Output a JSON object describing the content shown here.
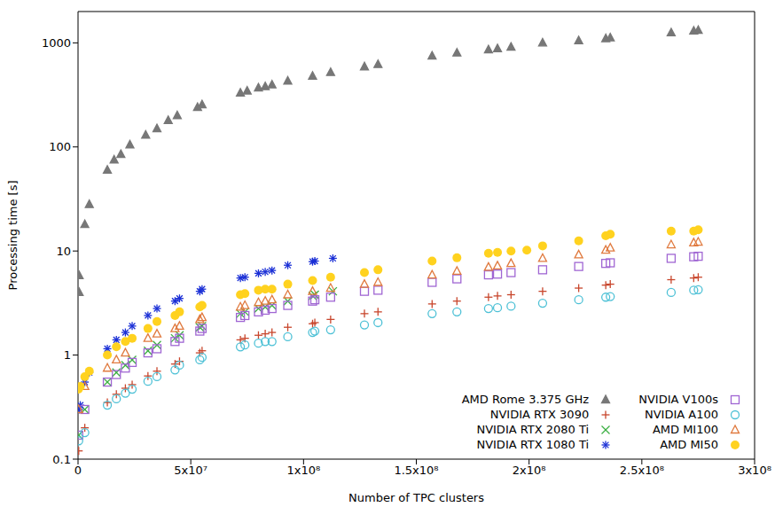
{
  "chart_data": {
    "type": "scatter",
    "x_label": "Number of TPC clusters",
    "y_label": "Processing time [s]",
    "log": "y",
    "grid": false,
    "legend": "lower right",
    "xlim": [
      0,
      300000000
    ],
    "xticks": [
      0,
      {
        "value": 50000000,
        "label": "5x10⁷"
      },
      {
        "value": 100000000,
        "label": "1x10⁸"
      },
      {
        "value": 150000000,
        "label": "1.5x10⁸"
      },
      {
        "value": 200000000,
        "label": "2x10⁸"
      },
      {
        "value": 250000000,
        "label": "2.5x10⁸"
      },
      {
        "value": 300000000,
        "label": "3x10⁸"
      }
    ],
    "ylim": [
      0.1,
      2000
    ],
    "yticks": [
      0.1,
      1,
      10,
      100,
      1000
    ],
    "series": [
      {
        "name": "AMD Rome 3.375 GHz",
        "color": "#777777",
        "marker": "filled_triangle",
        "x": [
          500000,
          500000,
          3000000,
          5000000,
          13000000,
          16000000,
          19000000,
          23000000,
          30000000,
          35000000,
          40000000,
          44000000,
          53000000,
          55000000,
          72000000,
          75000000,
          80000000,
          83000000,
          86000000,
          93000000,
          104000000,
          112000000,
          127000000,
          133000000,
          157000000,
          168000000,
          182000000,
          186000000,
          192000000,
          206000000,
          222000000,
          234000000,
          236000000,
          263000000,
          273000000,
          275000000
        ],
        "values": [
          4,
          5.8,
          18,
          28,
          60,
          75,
          85,
          105,
          130,
          150,
          180,
          200,
          240,
          255,
          330,
          345,
          370,
          380,
          395,
          430,
          480,
          520,
          590,
          620,
          750,
          800,
          860,
          880,
          910,
          1000,
          1050,
          1100,
          1120,
          1250,
          1300,
          1320
        ]
      },
      {
        "name": "NVIDIA RTX 3090",
        "color": "#c8462c",
        "marker": "plus",
        "x": [
          300000,
          3000000,
          13000000,
          17000000,
          21000000,
          24000000,
          31000000,
          35000000,
          43000000,
          45000000,
          54000000,
          55000000,
          72000000,
          74000000,
          80000000,
          83000000,
          86000000,
          93000000,
          104000000,
          105000000,
          112000000,
          127000000,
          133000000,
          157000000,
          168000000,
          182000000,
          186000000,
          192000000,
          206000000,
          222000000,
          234000000,
          236000000,
          263000000,
          273000000,
          275000000
        ],
        "values": [
          0.12,
          0.2,
          0.35,
          0.42,
          0.48,
          0.52,
          0.63,
          0.7,
          0.82,
          0.87,
          1.05,
          1.1,
          1.4,
          1.45,
          1.55,
          1.6,
          1.65,
          1.85,
          2.0,
          2.05,
          2.2,
          2.5,
          2.6,
          3.1,
          3.3,
          3.6,
          3.7,
          3.8,
          4.1,
          4.4,
          4.7,
          4.8,
          5.3,
          5.5,
          5.6
        ]
      },
      {
        "name": "NVIDIA RTX 2080 Ti",
        "color": "#3cb043",
        "marker": "x",
        "x": [
          300000,
          3000000,
          13000000,
          17000000,
          21000000,
          24000000,
          31000000,
          35000000,
          43000000,
          45000000,
          54000000,
          55000000,
          72000000,
          74000000,
          80000000,
          83000000,
          86000000,
          93000000,
          104000000,
          105000000,
          113000000
        ],
        "values": [
          0.17,
          0.3,
          0.55,
          0.68,
          0.8,
          0.9,
          1.1,
          1.25,
          1.45,
          1.55,
          1.85,
          1.9,
          2.5,
          2.6,
          2.8,
          2.9,
          3.0,
          3.3,
          3.7,
          3.8,
          4.1
        ]
      },
      {
        "name": "NVIDIA RTX 1080 Ti",
        "color": "#1a2fd6",
        "marker": "asterisk",
        "x": [
          500000,
          1000000,
          3000000,
          5000000,
          13000000,
          17000000,
          21000000,
          24000000,
          31000000,
          35000000,
          43000000,
          45000000,
          54000000,
          55000000,
          72000000,
          74000000,
          80000000,
          83000000,
          86000000,
          93000000,
          104000000,
          105000000,
          113000000
        ],
        "values": [
          0.3,
          0.33,
          0.55,
          0.68,
          1.15,
          1.4,
          1.65,
          1.9,
          2.4,
          2.8,
          3.3,
          3.5,
          4.1,
          4.3,
          5.5,
          5.6,
          6.1,
          6.3,
          6.5,
          7.3,
          7.9,
          8.0,
          8.5
        ]
      },
      {
        "name": "NVIDIA V100s",
        "color": "#a066d3",
        "marker": "open_square",
        "x": [
          300000,
          3000000,
          13000000,
          17000000,
          21000000,
          24000000,
          31000000,
          35000000,
          43000000,
          45000000,
          54000000,
          55000000,
          72000000,
          74000000,
          80000000,
          83000000,
          86000000,
          93000000,
          104000000,
          105000000,
          112000000,
          127000000,
          133000000,
          157000000,
          168000000,
          182000000,
          186000000,
          192000000,
          206000000,
          222000000,
          234000000,
          236000000,
          263000000,
          273000000,
          275000000
        ],
        "values": [
          0.17,
          0.3,
          0.55,
          0.65,
          0.75,
          0.85,
          1.05,
          1.15,
          1.35,
          1.45,
          1.7,
          1.8,
          2.3,
          2.4,
          2.6,
          2.7,
          2.8,
          3.0,
          3.3,
          3.4,
          3.6,
          4.1,
          4.2,
          5.0,
          5.4,
          5.9,
          6.0,
          6.2,
          6.6,
          7.1,
          7.6,
          7.7,
          8.5,
          8.8,
          8.9
        ]
      },
      {
        "name": "NVIDIA A100",
        "color": "#4ec1d6",
        "marker": "open_circle",
        "x": [
          300000,
          3000000,
          13000000,
          17000000,
          21000000,
          24000000,
          31000000,
          35000000,
          43000000,
          45000000,
          54000000,
          55000000,
          72000000,
          74000000,
          80000000,
          83000000,
          86000000,
          93000000,
          104000000,
          105000000,
          112000000,
          127000000,
          133000000,
          157000000,
          168000000,
          182000000,
          186000000,
          192000000,
          206000000,
          222000000,
          234000000,
          236000000,
          263000000,
          273000000,
          275000000
        ],
        "values": [
          0.15,
          0.18,
          0.33,
          0.38,
          0.43,
          0.47,
          0.56,
          0.62,
          0.72,
          0.8,
          0.9,
          0.95,
          1.2,
          1.25,
          1.3,
          1.35,
          1.35,
          1.5,
          1.65,
          1.7,
          1.75,
          1.95,
          2.05,
          2.5,
          2.6,
          2.8,
          2.85,
          2.95,
          3.15,
          3.4,
          3.6,
          3.65,
          4.0,
          4.2,
          4.25
        ]
      },
      {
        "name": "AMD MI100",
        "color": "#e07a3f",
        "marker": "open_triangle",
        "x": [
          300000,
          3000000,
          13000000,
          17000000,
          21000000,
          31000000,
          35000000,
          43000000,
          45000000,
          54000000,
          55000000,
          72000000,
          74000000,
          80000000,
          83000000,
          86000000,
          93000000,
          104000000,
          112000000,
          127000000,
          133000000,
          157000000,
          168000000,
          182000000,
          186000000,
          192000000,
          206000000,
          222000000,
          234000000,
          236000000,
          263000000,
          273000000,
          275000000
        ],
        "values": [
          0.3,
          0.5,
          0.75,
          0.9,
          1.05,
          1.45,
          1.6,
          1.8,
          1.9,
          2.2,
          2.3,
          2.9,
          3.0,
          3.2,
          3.3,
          3.4,
          3.8,
          4.1,
          4.4,
          4.8,
          5.0,
          5.9,
          6.4,
          7.0,
          7.2,
          7.6,
          8.5,
          9.2,
          10.2,
          10.7,
          11.5,
          12,
          12.2
        ]
      },
      {
        "name": "AMD MI50",
        "color": "#ffd21f",
        "marker": "filled_circle",
        "x": [
          200000,
          1000000,
          3000000,
          5000000,
          13000000,
          17000000,
          21000000,
          24000000,
          31000000,
          35000000,
          43000000,
          45000000,
          54000000,
          55000000,
          72000000,
          74000000,
          80000000,
          83000000,
          86000000,
          93000000,
          104000000,
          112000000,
          127000000,
          133000000,
          157000000,
          168000000,
          182000000,
          186000000,
          192000000,
          199000000,
          206000000,
          222000000,
          234000000,
          236000000,
          263000000,
          273000000,
          275000000
        ],
        "values": [
          0.47,
          0.5,
          0.62,
          0.7,
          1.0,
          1.2,
          1.35,
          1.45,
          1.8,
          2.1,
          2.4,
          2.6,
          2.9,
          3.0,
          3.8,
          3.9,
          4.2,
          4.3,
          4.3,
          4.8,
          5.2,
          5.6,
          6.2,
          6.6,
          8.0,
          8.6,
          9.5,
          9.7,
          10,
          10.2,
          11.2,
          12.5,
          14,
          14.5,
          15.5,
          15.5,
          16
        ]
      }
    ]
  }
}
